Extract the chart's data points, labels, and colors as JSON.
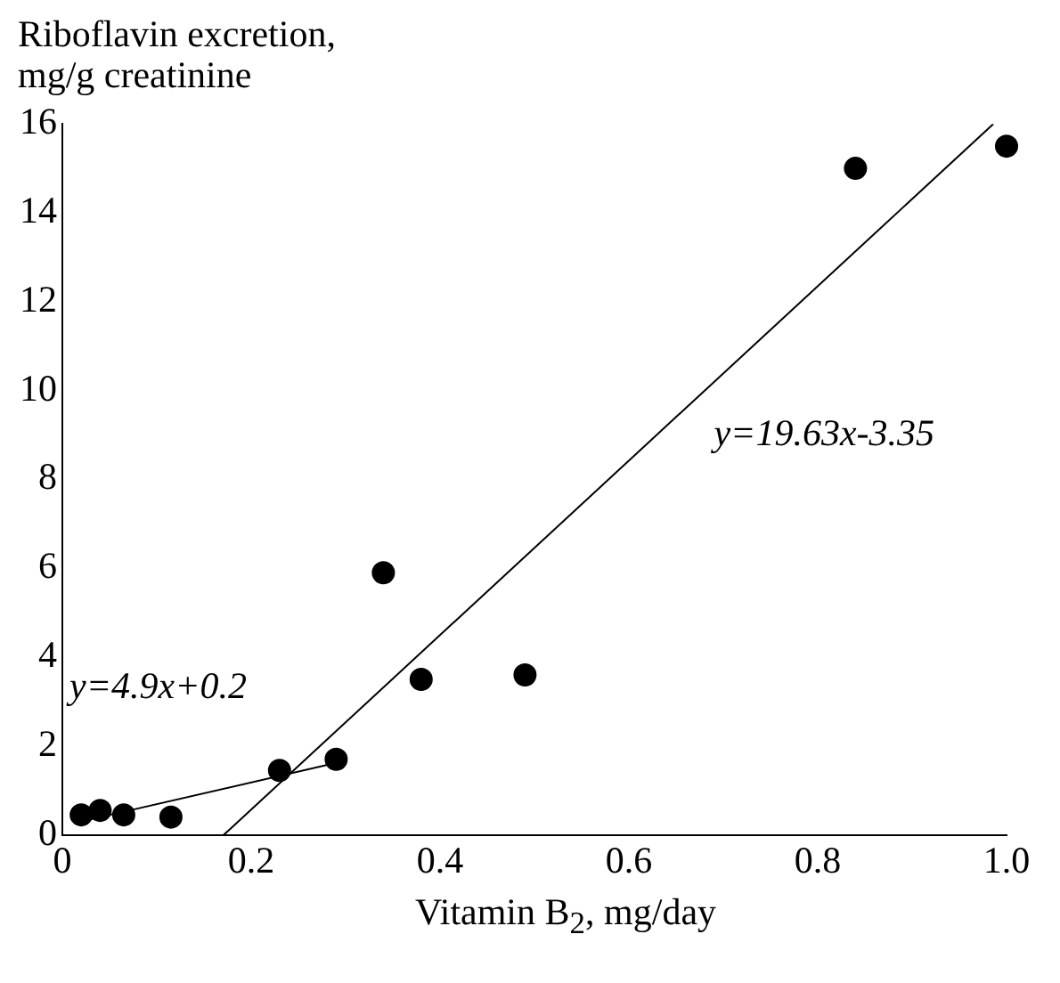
{
  "chart_data": {
    "type": "scatter",
    "xlabel": "Vitamin B$_{2}$, mg/day",
    "ylabel": "Riboflavin excretion,\nmg/g creatinine",
    "xlim": [
      0,
      1
    ],
    "ylim": [
      0,
      16
    ],
    "xticks": [
      0,
      0.2,
      0.4,
      0.6,
      0.8,
      {
        "value": 1,
        "label": "1.0"
      }
    ],
    "yticks": [
      0,
      2,
      4,
      6,
      8,
      10,
      12,
      14,
      16
    ],
    "grid": false,
    "legend": false,
    "series": [
      {
        "marker": "circle",
        "color": "#000000",
        "x": [
          0.02,
          0.04,
          0.065,
          0.115,
          0.23,
          0.29,
          0.34,
          0.38,
          0.49,
          0.84,
          1.0
        ],
        "values": [
          0.45,
          0.55,
          0.45,
          0.4,
          1.45,
          1.7,
          5.9,
          3.5,
          3.6,
          15,
          15.5
        ]
      },
      {
        "type": "line",
        "color": "#000000",
        "x": [
          0.02,
          0.29
        ],
        "values": [
          0.3,
          1.62
        ]
      },
      {
        "type": "line",
        "color": "#000000",
        "x": [
          0.171,
          0.986
        ],
        "values": [
          0,
          16
        ]
      }
    ],
    "annotations": [
      "y=4.9x+0.2",
      "y=19.63x-3.35"
    ]
  }
}
